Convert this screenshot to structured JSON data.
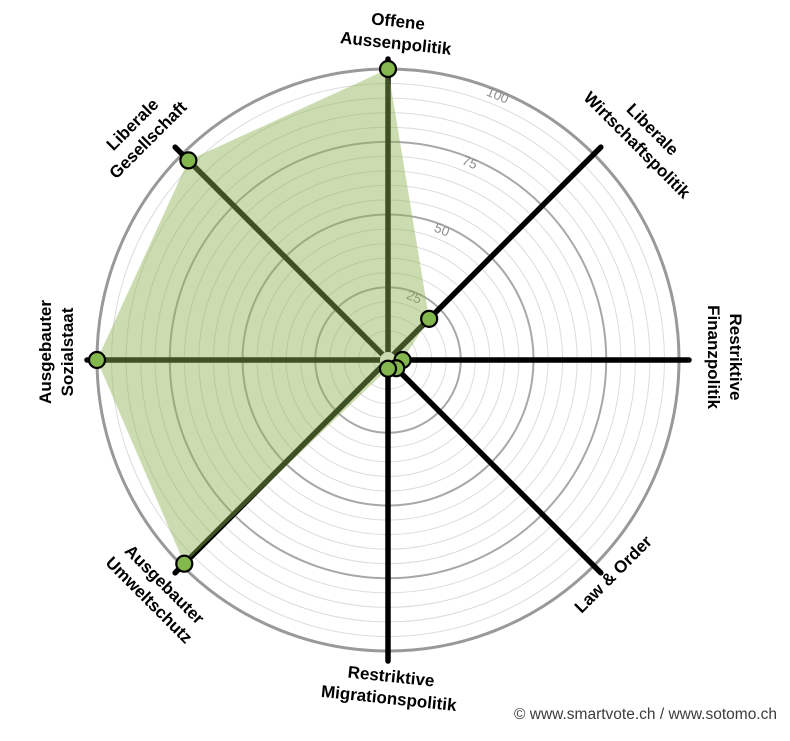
{
  "chart_data": {
    "type": "radar",
    "description": "smartspider policy-profile radar chart",
    "axes": [
      {
        "label": "Offene Aussenpolitik",
        "lines": [
          "Offene",
          "Aussenpolitik"
        ],
        "angle_deg": 0,
        "value": 100
      },
      {
        "label": "Liberale Wirtschaftspolitik",
        "lines": [
          "Liberale",
          "Wirtschaftspolitik"
        ],
        "angle_deg": 45,
        "value": 20
      },
      {
        "label": "Restriktive Finanzpolitik",
        "lines": [
          "Restriktive",
          "Finanzpolitik"
        ],
        "angle_deg": 90,
        "value": 5
      },
      {
        "label": "Law & Order",
        "lines": [
          "Law & Order"
        ],
        "angle_deg": 135,
        "value": 4
      },
      {
        "label": "Restriktive Migrationspolitik",
        "lines": [
          "Restriktive",
          "Migrationspolitik"
        ],
        "angle_deg": 180,
        "value": 3
      },
      {
        "label": "Ausgebauter Umweltschutz",
        "lines": [
          "Ausgebauter",
          "Umweltschutz"
        ],
        "angle_deg": 225,
        "value": 99
      },
      {
        "label": "Ausgebauter Sozialstaat",
        "lines": [
          "Ausgebauter",
          "Sozialstaat"
        ],
        "angle_deg": 270,
        "value": 100
      },
      {
        "label": "Liberale Gesellschaft",
        "lines": [
          "Liberale",
          "Gesellschaft"
        ],
        "angle_deg": 315,
        "value": 97
      }
    ],
    "scale": {
      "min": 0,
      "max": 100,
      "minor_ring_step": 5,
      "major_ring_step": 25,
      "tick_labels": [
        "25",
        "50",
        "75",
        "100"
      ],
      "tick_values": [
        25,
        50,
        75,
        100
      ]
    },
    "legend_position": "none",
    "grid": true,
    "colors": {
      "fill": "rgba(140,180,80,0.45)",
      "dot_fill": "#84b74e",
      "dot_stroke": "#000000",
      "axis_line": "#000000",
      "ring_minor": "#dcdcdc",
      "ring_major": "#a8a8a8",
      "ring_outer": "#999999",
      "tick_text": "#8e8e8e",
      "label_text": "#000000",
      "background": "#ffffff"
    }
  },
  "footer": {
    "credit": "© www.smartvote.ch / www.sotomo.ch"
  }
}
